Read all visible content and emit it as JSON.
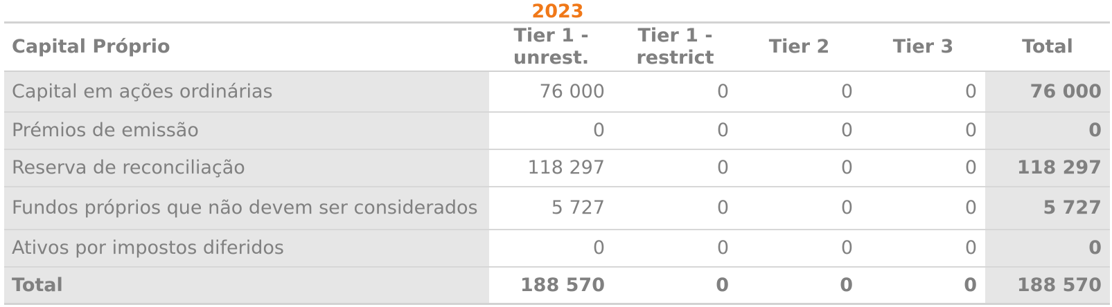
{
  "year": "2023",
  "table": {
    "headers": {
      "label": "Capital Próprio",
      "tier1_unrest": [
        "Tier 1 -",
        "unrest."
      ],
      "tier1_restrict": [
        "Tier 1 -",
        "restrict"
      ],
      "tier2": "Tier 2",
      "tier3": "Tier 3",
      "total": "Total"
    },
    "rows": [
      {
        "label": "Capital em ações ordinárias",
        "tier1_unrest": "76 000",
        "tier1_restrict": "0",
        "tier2": "0",
        "tier3": "0",
        "total": "76 000"
      },
      {
        "label": "Prémios de emissão",
        "tier1_unrest": "0",
        "tier1_restrict": "0",
        "tier2": "0",
        "tier3": "0",
        "total": "0"
      },
      {
        "label": "Reserva de reconciliação",
        "tier1_unrest": "118 297",
        "tier1_restrict": "0",
        "tier2": "0",
        "tier3": "0",
        "total": "118 297"
      },
      {
        "label": "Fundos próprios que não devem ser considerados",
        "tier1_unrest": "5 727",
        "tier1_restrict": "0",
        "tier2": "0",
        "tier3": "0",
        "total": "5 727"
      },
      {
        "label": "Ativos por impostos diferidos",
        "tier1_unrest": "0",
        "tier1_restrict": "0",
        "tier2": "0",
        "tier3": "0",
        "total": "0"
      }
    ],
    "total_row": {
      "label": "Total",
      "tier1_unrest": "188 570",
      "tier1_restrict": "0",
      "tier2": "0",
      "tier3": "0",
      "total": "188 570"
    }
  },
  "colors": {
    "accent": "#f07818",
    "text": "#808080",
    "label_background": "#e6e6e6",
    "rule": "#d2d2d2"
  }
}
